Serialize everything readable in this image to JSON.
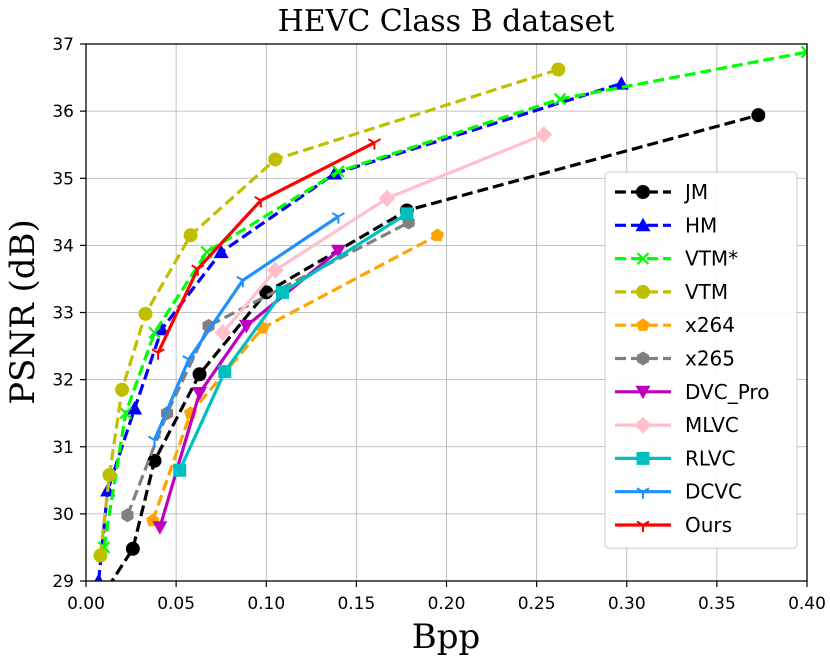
{
  "chart_data": {
    "type": "line",
    "title": "HEVC Class B dataset",
    "xlabel": "Bpp",
    "ylabel": "PSNR (dB)",
    "xlim": [
      0.0,
      0.4
    ],
    "ylim": [
      29,
      37
    ],
    "xticks": [
      0.0,
      0.05,
      0.1,
      0.15,
      0.2,
      0.25,
      0.3,
      0.35,
      0.4
    ],
    "xtick_labels": [
      "0.00",
      "0.05",
      "0.10",
      "0.15",
      "0.20",
      "0.25",
      "0.30",
      "0.35",
      "0.40"
    ],
    "yticks": [
      29,
      30,
      31,
      32,
      33,
      34,
      35,
      36,
      37
    ],
    "ytick_labels": [
      "29",
      "30",
      "31",
      "32",
      "33",
      "34",
      "35",
      "36",
      "37"
    ],
    "grid": true,
    "legend_position": "right",
    "series": [
      {
        "name": "JM",
        "color": "#000000",
        "dash": "dashed",
        "marker": "circle",
        "x": [
          0.012,
          0.026,
          0.038,
          0.063,
          0.1,
          0.178,
          0.373
        ],
        "y": [
          28.9,
          29.48,
          30.79,
          32.08,
          33.3,
          34.52,
          35.94
        ]
      },
      {
        "name": "HM",
        "color": "#0000ff",
        "dash": "dashed",
        "marker": "triangle-up",
        "x": [
          0.007,
          0.012,
          0.027,
          0.042,
          0.075,
          0.138,
          0.297
        ],
        "y": [
          29.0,
          30.35,
          31.57,
          32.75,
          33.9,
          35.07,
          36.41
        ]
      },
      {
        "name": "VTM*",
        "color": "#00ff00",
        "dash": "dashed",
        "marker": "x",
        "x": [
          0.01,
          0.022,
          0.038,
          0.067,
          0.14,
          0.263,
          0.4
        ],
        "y": [
          29.5,
          31.5,
          32.7,
          33.9,
          35.1,
          36.18,
          36.88
        ]
      },
      {
        "name": "VTM",
        "color": "#bfbf00",
        "dash": "dashed",
        "marker": "circle",
        "x": [
          0.008,
          0.013,
          0.02,
          0.033,
          0.058,
          0.105,
          0.262
        ],
        "y": [
          29.38,
          30.58,
          31.85,
          32.98,
          34.15,
          35.28,
          36.62
        ]
      },
      {
        "name": "x264",
        "color": "#ffa500",
        "dash": "dashed",
        "marker": "pentagon",
        "x": [
          0.037,
          0.058,
          0.098,
          0.195
        ],
        "y": [
          29.9,
          31.5,
          32.77,
          34.15
        ]
      },
      {
        "name": "x265",
        "color": "#808080",
        "dash": "dashed",
        "marker": "hexagon",
        "x": [
          0.023,
          0.045,
          0.068,
          0.179
        ],
        "y": [
          29.98,
          31.5,
          32.8,
          34.34
        ]
      },
      {
        "name": "DVC_Pro",
        "color": "#bf00bf",
        "dash": "solid",
        "marker": "triangle-down",
        "x": [
          0.041,
          0.063,
          0.089,
          0.14
        ],
        "y": [
          29.8,
          31.8,
          32.8,
          33.92
        ]
      },
      {
        "name": "MLVC",
        "color": "#ffc0cb",
        "dash": "solid",
        "marker": "diamond",
        "x": [
          0.076,
          0.105,
          0.167,
          0.254
        ],
        "y": [
          32.7,
          33.63,
          34.7,
          35.65
        ]
      },
      {
        "name": "RLVC",
        "color": "#00bfbf",
        "dash": "solid",
        "marker": "square",
        "x": [
          0.052,
          0.077,
          0.109,
          0.178
        ],
        "y": [
          30.65,
          32.12,
          33.3,
          34.47
        ]
      },
      {
        "name": "DCVC",
        "color": "#1e90ff",
        "dash": "solid",
        "marker": "tri",
        "x": [
          0.038,
          0.057,
          0.087,
          0.14
        ],
        "y": [
          31.1,
          32.3,
          33.48,
          34.43
        ]
      },
      {
        "name": "Ours",
        "color": "#ff0000",
        "dash": "solid",
        "marker": "tri",
        "x": [
          0.04,
          0.062,
          0.097,
          0.16
        ],
        "y": [
          32.4,
          33.65,
          34.67,
          35.53
        ]
      }
    ]
  }
}
